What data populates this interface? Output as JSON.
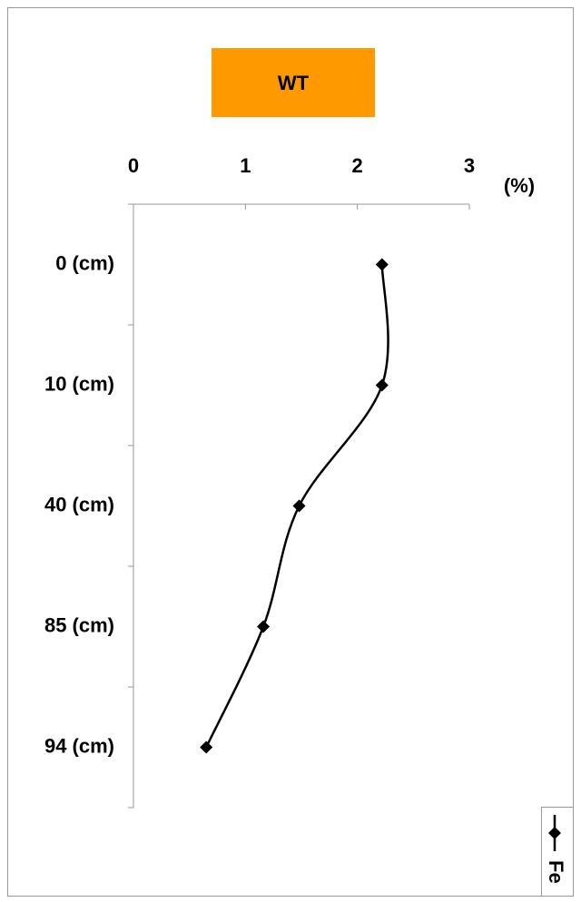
{
  "chart_data": {
    "type": "line",
    "orientation": "horizontal",
    "title": "WT",
    "x_label": "(%)",
    "categories": [
      "0 (cm)",
      "10 (cm)",
      "40 (cm)",
      "85 (cm)",
      "94 (cm)"
    ],
    "series": [
      {
        "name": "Fe",
        "color": "#000000",
        "values": [
          2.22,
          2.22,
          1.48,
          1.16,
          0.65
        ]
      }
    ],
    "xlim": [
      0,
      3
    ],
    "xticks": [
      0,
      1,
      2,
      3
    ],
    "title_color": "#ff9900",
    "legend": "bottom-right",
    "smooth": true
  }
}
